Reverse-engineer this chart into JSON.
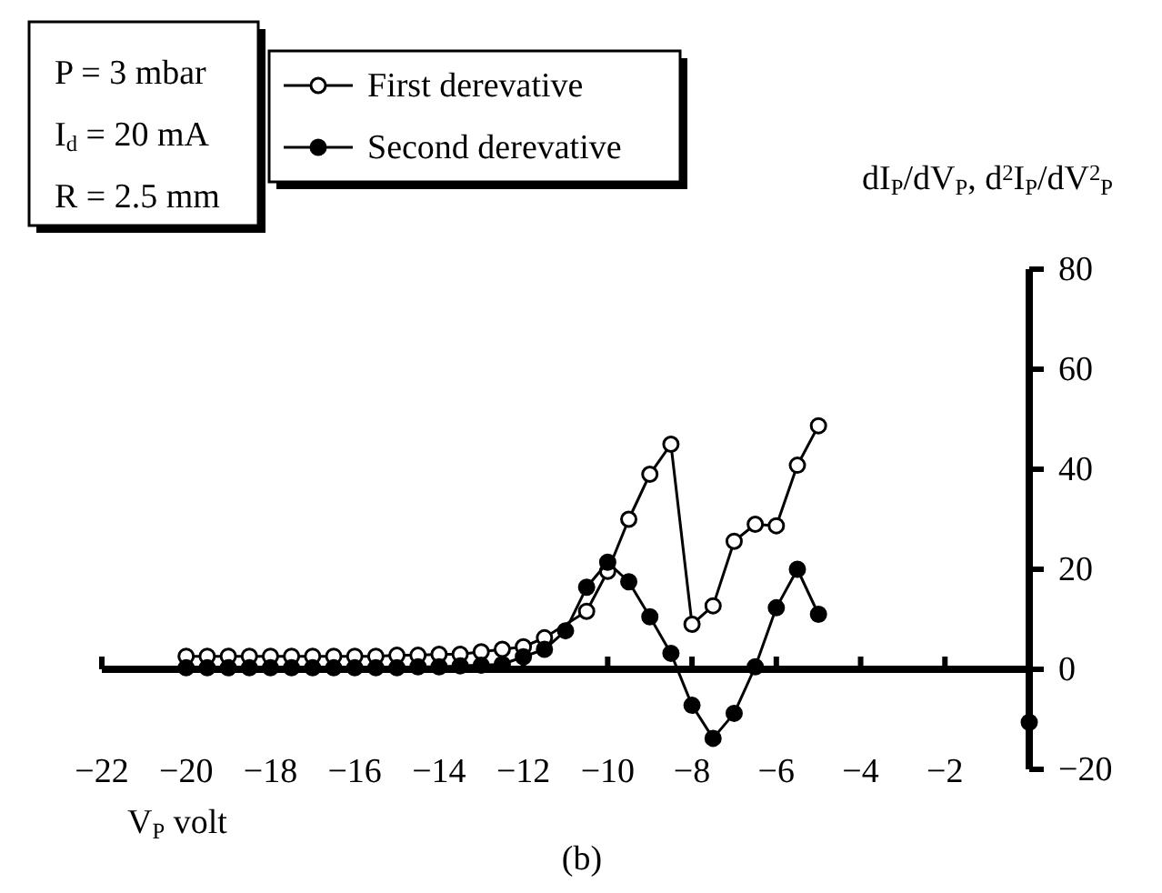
{
  "chart_data": {
    "type": "line",
    "xlabel": "V$_{P}$ volt",
    "ylabel": "dI$_{P}$/dV$_{P}$,  d$^{2}$I$_{P}$/dV$^{2}$$_{P}$",
    "annotations": [
      "P = 3 mbar",
      "I$_{d}$ = 20 mA",
      "R = 2.5 mm",
      "(b)"
    ],
    "x": [
      -20,
      -19.5,
      -19,
      -18.5,
      -18,
      -17.5,
      -17,
      -16.5,
      -16,
      -15.5,
      -15,
      -14.5,
      -14,
      -13.5,
      -13,
      -12.5,
      -12,
      -11.5,
      -11,
      -10.5,
      -10,
      -9.5,
      -9,
      -8.5,
      -8,
      -7.5,
      -7,
      -6.5,
      -6,
      -5.5,
      -5
    ],
    "series": [
      {
        "name": "First derevative",
        "color": "#000000",
        "marker": "circle",
        "values": [
          2.6,
          2.6,
          2.6,
          2.6,
          2.6,
          2.6,
          2.6,
          2.6,
          2.6,
          2.6,
          2.8,
          2.8,
          3,
          3,
          3.5,
          4,
          4.5,
          6.3,
          null,
          11.6,
          19.6,
          30,
          39,
          45,
          9,
          12.7,
          25.6,
          29,
          28.7,
          40.8,
          48.7
        ]
      },
      {
        "name": "Second derevative",
        "color": "#000000",
        "marker": "circle",
        "values": [
          0.3,
          0.3,
          0.3,
          0.3,
          0.3,
          0.3,
          0.3,
          0.3,
          0.3,
          0.3,
          0.3,
          0.5,
          0.5,
          0.7,
          0.8,
          1,
          2.5,
          4,
          7.7,
          16.4,
          21.4,
          17.5,
          10.5,
          3.2,
          -7.2,
          -13.8,
          -8.8,
          0.5,
          12.3,
          20,
          11
        ]
      },
      {
        "type": "scatter",
        "color": "#000000",
        "marker": "circle",
        "x": [
          0
        ],
        "values": [
          -10.6
        ]
      }
    ],
    "xlim": [
      -22,
      0
    ],
    "ylim": [
      -20,
      80
    ],
    "xticks": [
      -22,
      -20,
      -18,
      -16,
      -14,
      -12,
      -10,
      -8,
      -6,
      -4,
      -2
    ],
    "yticks": [
      -20,
      0,
      20,
      40,
      60,
      80
    ],
    "grid": false,
    "legend": "top left",
    "line_style": "solid"
  }
}
